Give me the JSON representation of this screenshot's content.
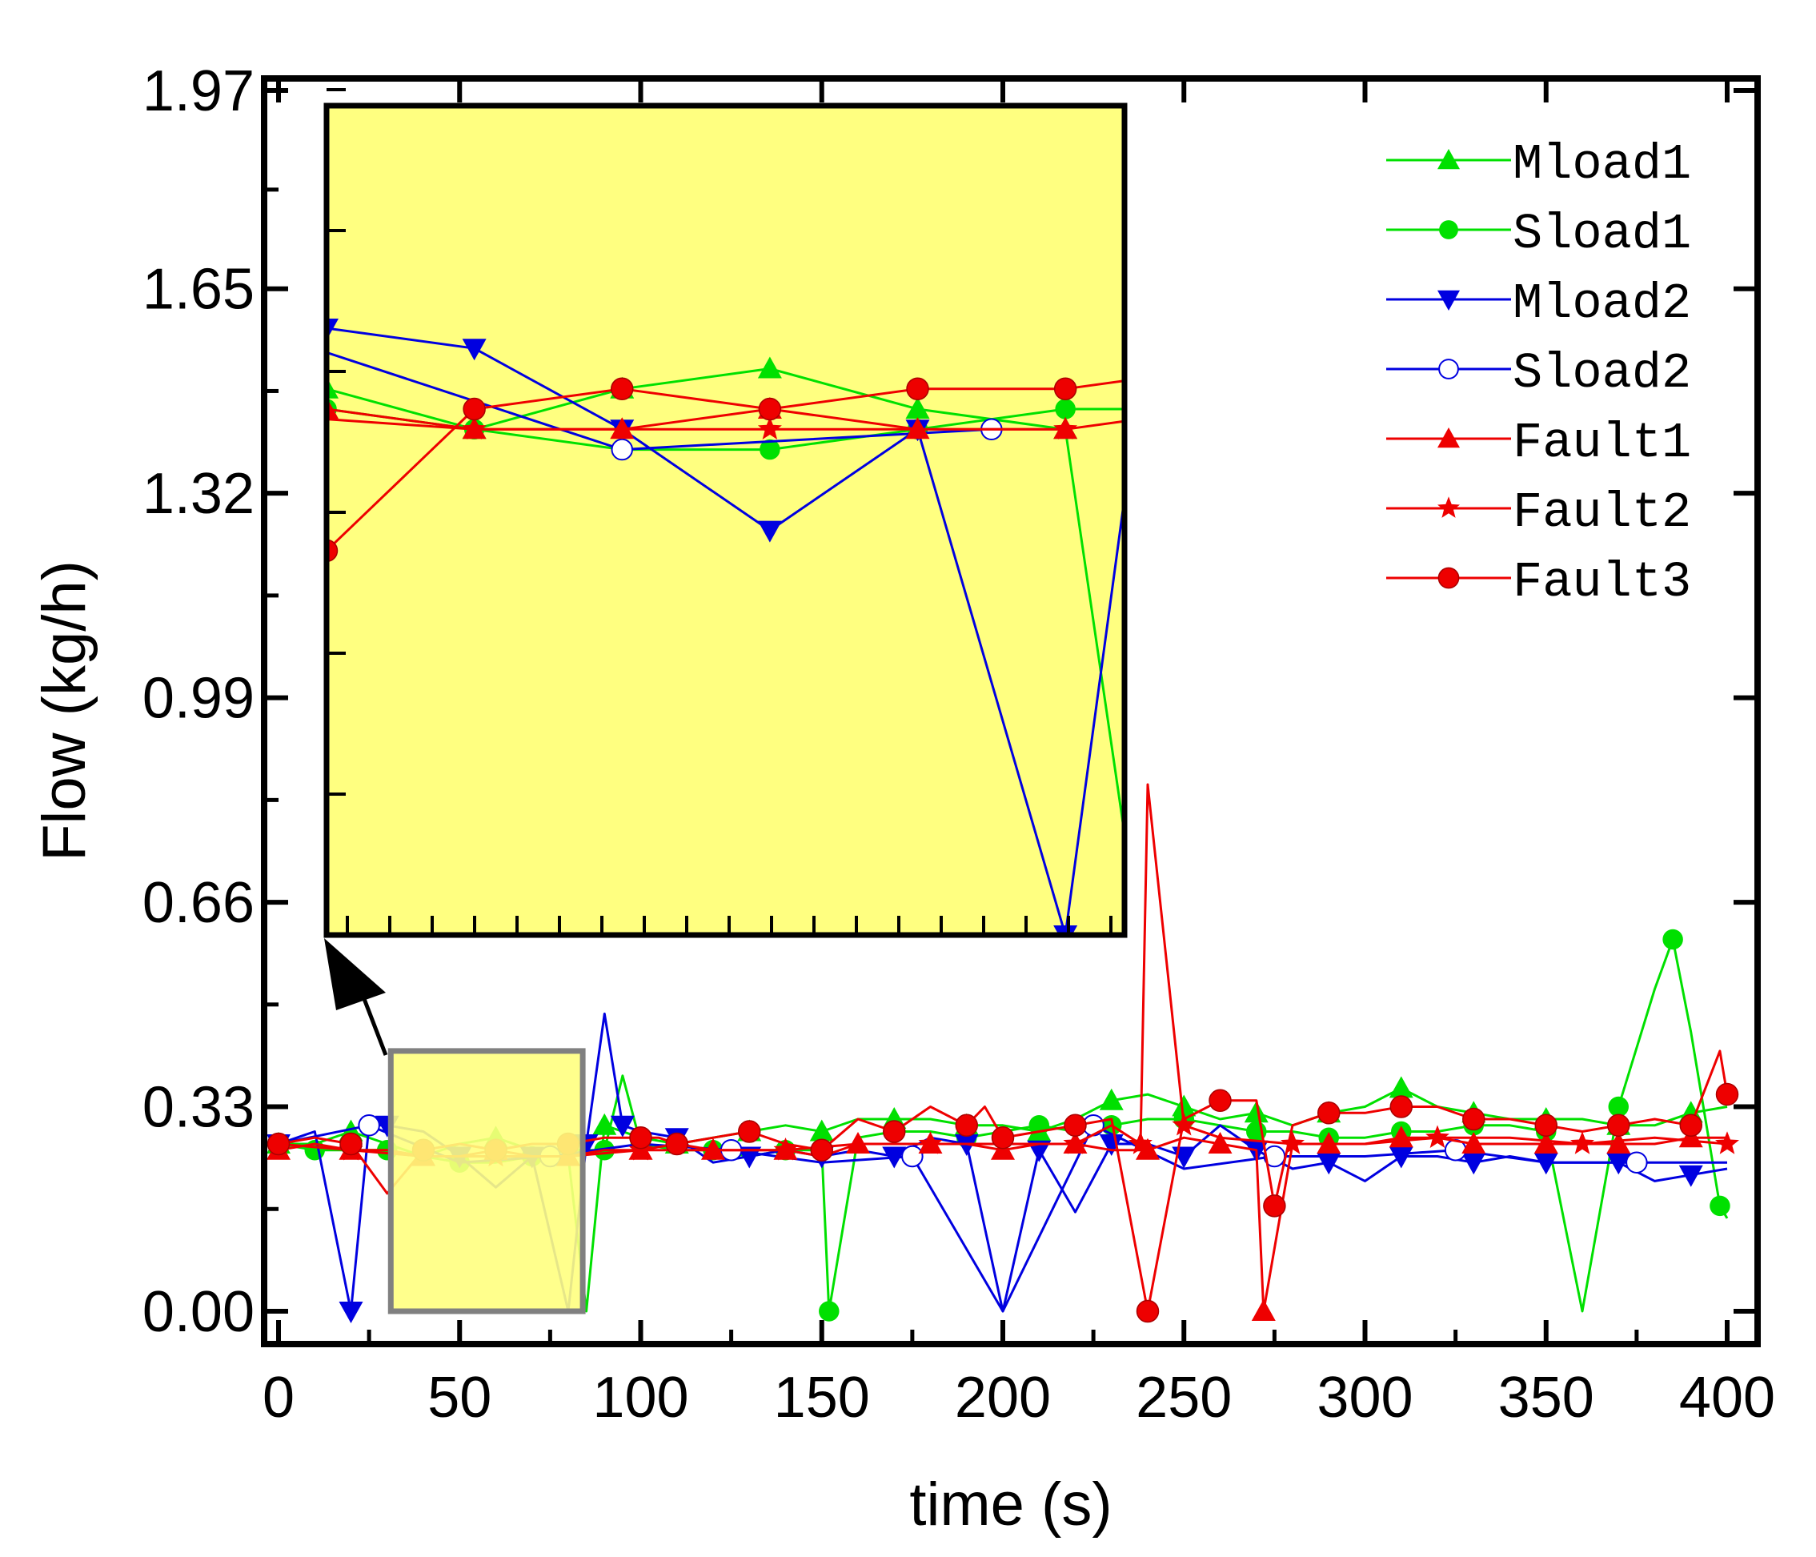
{
  "chart_data": {
    "type": "line",
    "title": "",
    "xlabel": "time (s)",
    "ylabel": "Flow (kg/h)",
    "xlim": [
      -3,
      403
    ],
    "ylim": [
      -0.06,
      1.99
    ],
    "xticks": [
      0,
      50,
      100,
      150,
      200,
      250,
      300,
      350,
      400
    ],
    "yticks": [
      0.0,
      0.33,
      0.66,
      0.99,
      1.32,
      1.65,
      1.97
    ],
    "ytick_labels": [
      "0.00",
      "0.33",
      "0.66",
      "0.99",
      "1.32",
      "1.65",
      "1.97"
    ],
    "legend_position": "top-right",
    "series": [
      {
        "name": "Mload1",
        "color": "#00e000",
        "marker": "triangle-up",
        "x": [
          0,
          10,
          20,
          30,
          40,
          50,
          60,
          70,
          80,
          85,
          90,
          100,
          110,
          120,
          130,
          140,
          150,
          160,
          170,
          180,
          190,
          200,
          210,
          220,
          230,
          240,
          250,
          260,
          270,
          280,
          290,
          300,
          310,
          320,
          330,
          340,
          350,
          360,
          370,
          380,
          390,
          400
        ],
        "y": [
          0.27,
          0.27,
          0.29,
          0.27,
          0.25,
          0.27,
          0.28,
          0.26,
          0.25,
          0.0,
          0.3,
          0.28,
          0.27,
          0.28,
          0.29,
          0.3,
          0.29,
          0.31,
          0.31,
          0.31,
          0.3,
          0.3,
          0.29,
          0.31,
          0.34,
          0.35,
          0.33,
          0.31,
          0.32,
          0.3,
          0.32,
          0.33,
          0.36,
          0.33,
          0.32,
          0.31,
          0.31,
          0.31,
          0.3,
          0.3,
          0.32,
          0.33
        ]
      },
      {
        "name": "Sload1",
        "color": "#00e000",
        "marker": "circle",
        "x": [
          0,
          10,
          20,
          30,
          40,
          50,
          60,
          70,
          80,
          90,
          95,
          100,
          110,
          120,
          130,
          140,
          150,
          152,
          160,
          170,
          180,
          190,
          200,
          210,
          220,
          230,
          240,
          250,
          260,
          270,
          280,
          290,
          300,
          310,
          320,
          330,
          340,
          350,
          360,
          370,
          380,
          385,
          390,
          398,
          400
        ],
        "y": [
          0.27,
          0.26,
          0.26,
          0.26,
          0.25,
          0.24,
          0.24,
          0.25,
          0.26,
          0.26,
          0.38,
          0.27,
          0.26,
          0.26,
          0.25,
          0.26,
          0.26,
          0.0,
          0.28,
          0.29,
          0.29,
          0.28,
          0.29,
          0.3,
          0.29,
          0.3,
          0.31,
          0.31,
          0.3,
          0.29,
          0.29,
          0.28,
          0.28,
          0.29,
          0.29,
          0.3,
          0.3,
          0.29,
          0.0,
          0.33,
          0.52,
          0.6,
          0.45,
          0.17,
          0.15
        ]
      },
      {
        "name": "Mload2",
        "color": "#0000e0",
        "marker": "triangle-down",
        "x": [
          0,
          10,
          20,
          25,
          30,
          40,
          50,
          60,
          70,
          80,
          85,
          90,
          95,
          100,
          110,
          120,
          130,
          140,
          150,
          160,
          170,
          180,
          190,
          200,
          210,
          220,
          230,
          240,
          250,
          260,
          270,
          280,
          290,
          300,
          310,
          320,
          330,
          340,
          350,
          360,
          370,
          380,
          390,
          400
        ],
        "y": [
          0.27,
          0.29,
          0.0,
          0.3,
          0.3,
          0.29,
          0.25,
          0.2,
          0.25,
          0.0,
          0.27,
          0.48,
          0.3,
          0.29,
          0.28,
          0.24,
          0.25,
          0.26,
          0.25,
          0.26,
          0.25,
          0.28,
          0.27,
          0.0,
          0.26,
          0.16,
          0.27,
          0.27,
          0.25,
          0.3,
          0.26,
          0.23,
          0.24,
          0.21,
          0.25,
          0.25,
          0.24,
          0.25,
          0.24,
          0.24,
          0.24,
          0.21,
          0.22,
          0.23
        ]
      },
      {
        "name": "Sload2",
        "color": "#0000e0",
        "marker": "open-circle",
        "x": [
          0,
          25,
          50,
          75,
          100,
          125,
          150,
          175,
          200,
          225,
          250,
          275,
          300,
          325,
          350,
          375,
          400
        ],
        "y": [
          0.27,
          0.3,
          0.24,
          0.25,
          0.27,
          0.26,
          0.24,
          0.25,
          0.0,
          0.3,
          0.23,
          0.25,
          0.25,
          0.26,
          0.24,
          0.24,
          0.24
        ]
      },
      {
        "name": "Fault1",
        "color": "#ee0000",
        "marker": "triangle-up",
        "x": [
          0,
          10,
          20,
          30,
          40,
          50,
          60,
          70,
          80,
          90,
          100,
          110,
          120,
          130,
          140,
          150,
          160,
          170,
          180,
          190,
          200,
          210,
          220,
          230,
          240,
          250,
          260,
          270,
          272,
          280,
          290,
          300,
          310,
          320,
          330,
          340,
          350,
          360,
          370,
          380,
          390,
          400
        ],
        "y": [
          0.26,
          0.27,
          0.26,
          0.26,
          0.25,
          0.25,
          0.26,
          0.25,
          0.25,
          0.26,
          0.26,
          0.27,
          0.26,
          0.26,
          0.26,
          0.25,
          0.27,
          0.27,
          0.27,
          0.27,
          0.26,
          0.27,
          0.27,
          0.26,
          0.26,
          0.28,
          0.27,
          0.26,
          0.0,
          0.27,
          0.27,
          0.27,
          0.28,
          0.28,
          0.27,
          0.27,
          0.27,
          0.27,
          0.27,
          0.27,
          0.28,
          0.28
        ]
      },
      {
        "name": "Fault2",
        "color": "#ee0000",
        "marker": "star",
        "x": [
          0,
          20,
          40,
          60,
          80,
          100,
          120,
          140,
          160,
          180,
          200,
          220,
          230,
          238,
          240,
          250,
          260,
          280,
          300,
          320,
          340,
          360,
          380,
          400
        ],
        "y": [
          0.27,
          0.26,
          0.25,
          0.25,
          0.25,
          0.26,
          0.26,
          0.26,
          0.27,
          0.27,
          0.27,
          0.27,
          0.3,
          0.27,
          0.85,
          0.3,
          0.28,
          0.27,
          0.27,
          0.28,
          0.28,
          0.27,
          0.28,
          0.27
        ]
      },
      {
        "name": "Fault3",
        "color": "#ee0000",
        "marker": "sphere",
        "x": [
          0,
          10,
          20,
          30,
          40,
          50,
          60,
          70,
          80,
          90,
          100,
          105,
          110,
          120,
          130,
          140,
          150,
          160,
          170,
          180,
          190,
          195,
          200,
          210,
          220,
          230,
          240,
          250,
          260,
          270,
          275,
          280,
          290,
          300,
          310,
          320,
          330,
          340,
          350,
          360,
          370,
          380,
          390,
          398,
          400
        ],
        "y": [
          0.27,
          0.28,
          0.27,
          0.19,
          0.26,
          0.27,
          0.26,
          0.27,
          0.27,
          0.28,
          0.28,
          0.28,
          0.27,
          0.28,
          0.29,
          0.27,
          0.26,
          0.31,
          0.29,
          0.33,
          0.3,
          0.33,
          0.28,
          0.29,
          0.3,
          0.31,
          0.0,
          0.31,
          0.34,
          0.34,
          0.17,
          0.3,
          0.32,
          0.32,
          0.33,
          0.33,
          0.31,
          0.31,
          0.3,
          0.29,
          0.3,
          0.31,
          0.3,
          0.42,
          0.35
        ]
      }
    ],
    "inset": {
      "border": "#000000",
      "background": "#ffff80",
      "xrange": [
        30,
        84
      ],
      "yrange": [
        0.0,
        0.41
      ],
      "annotation": "arrow-from-zoom-box-to-inset",
      "highlight_box": {
        "x": [
          31,
          84
        ],
        "y": [
          0.0,
          0.42
        ]
      }
    }
  }
}
